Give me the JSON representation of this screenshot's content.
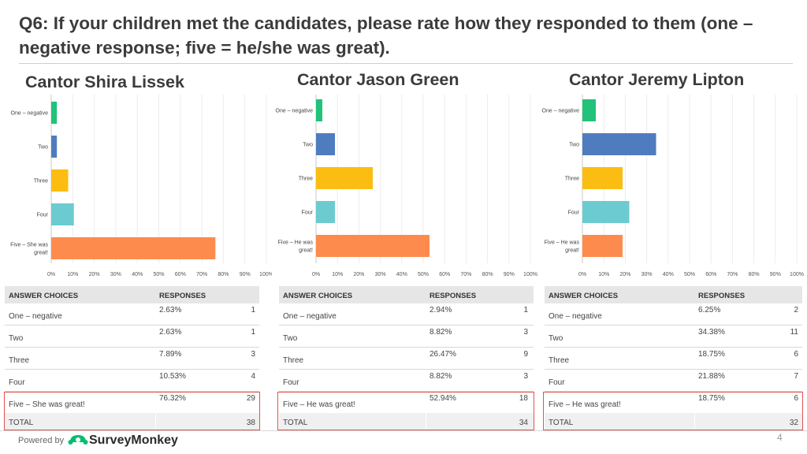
{
  "title": "Q6: If your children met the candidates, please rate how they responded to them (one – negative response; five = he/she was great).",
  "axis_ticks": [
    "0%",
    "10%",
    "20%",
    "30%",
    "40%",
    "50%",
    "60%",
    "70%",
    "80%",
    "90%",
    "100%"
  ],
  "colors": [
    "#21c27a",
    "#4f7cbf",
    "#fbbd12",
    "#6ccbd0",
    "#fd8b4e"
  ],
  "table_headers": {
    "choices": "ANSWER CHOICES",
    "responses": "RESPONSES"
  },
  "total_label": "TOTAL",
  "chart_data": [
    {
      "type": "bar",
      "orientation": "horizontal",
      "title": "Cantor Shira Lissek",
      "categories": [
        "One – negative",
        "Two",
        "Three",
        "Four",
        "Five – She was great!"
      ],
      "bar_labels": [
        [
          "One – negative"
        ],
        [
          "Two"
        ],
        [
          "Three"
        ],
        [
          "Four"
        ],
        [
          "Five – She was",
          "great!"
        ]
      ],
      "table_labels": [
        "One – negative",
        "Two",
        "Three",
        "Four",
        "Five – She was great!"
      ],
      "values": [
        2.63,
        2.63,
        7.89,
        10.53,
        76.32
      ],
      "value_labels": [
        "2.63%",
        "2.63%",
        "7.89%",
        "10.53%",
        "76.32%"
      ],
      "counts": [
        "1",
        "1",
        "3",
        "4",
        "29"
      ],
      "total": "38",
      "xlim": [
        0,
        100
      ]
    },
    {
      "type": "bar",
      "orientation": "horizontal",
      "title": "Cantor Jason Green",
      "categories": [
        "One – negative",
        "Two",
        "Three",
        "Four",
        "Five – He was great!"
      ],
      "bar_labels": [
        [
          "One – negative"
        ],
        [
          "Two"
        ],
        [
          "Three"
        ],
        [
          "Four"
        ],
        [
          "Five – He was",
          "great!"
        ]
      ],
      "table_labels": [
        "One – negative",
        "Two",
        "Three",
        "Four",
        "Five – He was great!"
      ],
      "values": [
        2.94,
        8.82,
        26.47,
        8.82,
        52.94
      ],
      "value_labels": [
        "2.94%",
        "8.82%",
        "26.47%",
        "8.82%",
        "52.94%"
      ],
      "counts": [
        "1",
        "3",
        "9",
        "3",
        "18"
      ],
      "total": "34",
      "xlim": [
        0,
        100
      ]
    },
    {
      "type": "bar",
      "orientation": "horizontal",
      "title": "Cantor Jeremy Lipton",
      "categories": [
        "One – negative",
        "Two",
        "Three",
        "Four",
        "Five – He was great!"
      ],
      "bar_labels": [
        [
          "One – negative"
        ],
        [
          "Two"
        ],
        [
          "Three"
        ],
        [
          "Four"
        ],
        [
          "Five – He was",
          "great!"
        ]
      ],
      "table_labels": [
        "One – negative",
        "Two",
        "Three",
        "Four",
        "Five – He was great!"
      ],
      "values": [
        6.25,
        34.38,
        18.75,
        21.88,
        18.75
      ],
      "value_labels": [
        "6.25%",
        "34.38%",
        "18.75%",
        "21.88%",
        "18.75%"
      ],
      "counts": [
        "2",
        "11",
        "6",
        "7",
        "6"
      ],
      "total": "32",
      "xlim": [
        0,
        100
      ]
    }
  ],
  "footer": {
    "powered_by": "Powered by",
    "brand": "SurveyMonkey",
    "page_number": "4"
  }
}
